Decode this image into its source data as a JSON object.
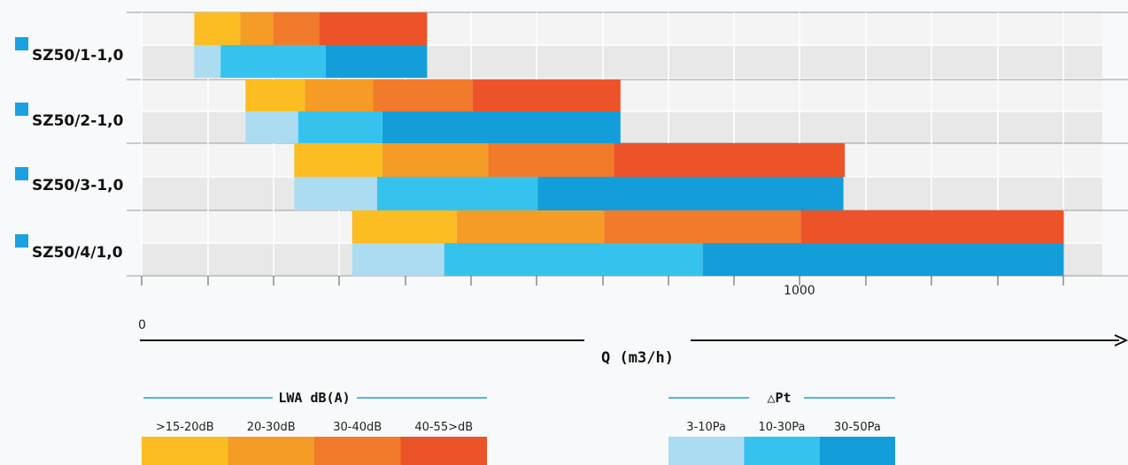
{
  "chart_data": {
    "type": "bar",
    "subtype": "horizontal-stacked-ranges",
    "xlabel": "Q (m3/h)",
    "x_tick_labels": [
      "0",
      "1000"
    ],
    "xlim": [
      0,
      1400
    ],
    "grid": true,
    "categories": [
      "SZ50/1-1,0",
      "SZ50/2-1,0",
      "SZ50/3-1,0",
      "SZ50/4/1,0"
    ],
    "category_marker_color": "#1ba1e2",
    "series": [
      {
        "name": "LWA dB(A)",
        "bands": [
          ">15-20dB",
          "20-30dB",
          "30-40dB",
          "40-55>dB"
        ],
        "colors": [
          "#fbbd22",
          "#f59c26",
          "#f27a2b",
          "#ec5328"
        ],
        "values": [
          [
            80,
            150,
            200,
            270,
            434
          ],
          [
            158,
            248,
            352,
            503,
            728
          ],
          [
            232,
            366,
            527,
            718,
            1069
          ],
          [
            320,
            479,
            703,
            1002,
            1402
          ]
        ]
      },
      {
        "name": "△Pt",
        "bands": [
          "3-10Pa",
          "10-30Pa",
          "30-50Pa"
        ],
        "colors": [
          "#abdcf2",
          "#35c3ee",
          "#139ed9"
        ],
        "values": [
          [
            80,
            120,
            280,
            434
          ],
          [
            158,
            238,
            366,
            728
          ],
          [
            232,
            358,
            602,
            1067
          ],
          [
            320,
            460,
            853,
            1402
          ]
        ]
      }
    ]
  },
  "legends": [
    {
      "title": "LWA dB(A)",
      "items": [
        {
          "label": ">15-20dB",
          "color": "#fbbd22"
        },
        {
          "label": "20-30dB",
          "color": "#f59c26"
        },
        {
          "label": "30-40dB",
          "color": "#f27a2b"
        },
        {
          "label": "40-55>dB",
          "color": "#ec5328"
        }
      ]
    },
    {
      "title": "△Pt",
      "items": [
        {
          "label": "3-10Pa",
          "color": "#abdcf2"
        },
        {
          "label": "10-30Pa",
          "color": "#35c3ee"
        },
        {
          "label": "30-50Pa",
          "color": "#139ed9"
        }
      ]
    }
  ]
}
